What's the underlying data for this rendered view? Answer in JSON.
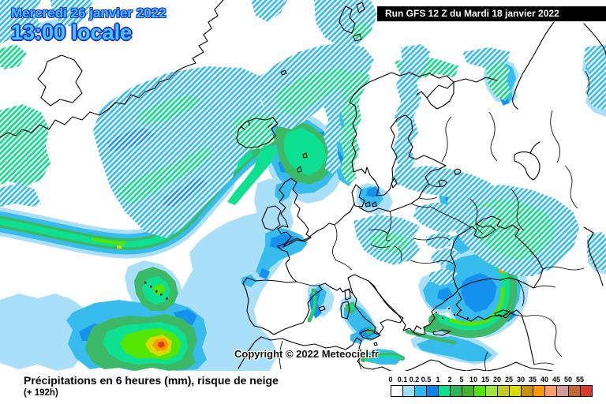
{
  "header": {
    "date_line": "Mercredi 26 janvier 2022",
    "time_line": "13:00 locale",
    "run_label": "Run GFS 12 Z du Mardi 18 janvier 2022"
  },
  "watermark": {
    "copyright": "Copyright © 2022 Meteociel.fr"
  },
  "legend": {
    "title": "Précipitations en 6 heures (mm), risque de neige",
    "forecast_offset": "(+ 192h)",
    "scale_labels": [
      "0",
      "0.1",
      "0.2",
      "0.5",
      "1",
      "2",
      "5",
      "10",
      "15",
      "20",
      "25",
      "30",
      "35",
      "40",
      "45",
      "50",
      "55"
    ],
    "scale_colors": [
      "#FFFFFF",
      "#A0DEF8",
      "#2EB9EA",
      "#0B85E9",
      "#0DE08E",
      "#2DB55C",
      "#46B32E",
      "#53E800",
      "#9FE53C",
      "#C2CC20",
      "#D8DC00",
      "#C79200",
      "#FF9800",
      "#FC9D68",
      "#CC9C9C",
      "#C56A2E",
      "#D23B2E"
    ]
  }
}
